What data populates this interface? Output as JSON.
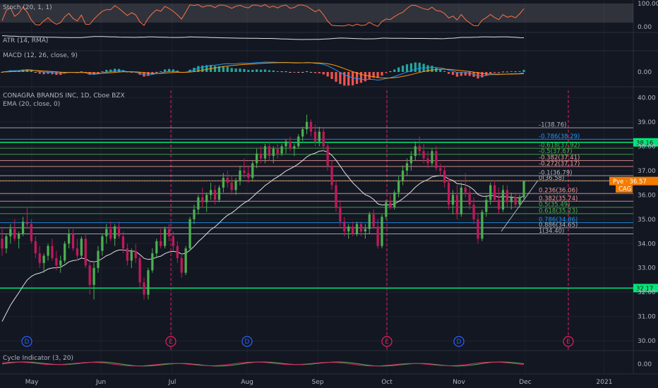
{
  "chart_data": {
    "type": "candlestick",
    "title": "CONAGRA BRANDS INC, 1D, Cboe BZX",
    "ema_label": "EMA (20, close, 0)",
    "indicators": {
      "stoch": {
        "label": "Stoch (20, 1, 1)",
        "ticks": [
          "100.00",
          "0.00"
        ]
      },
      "atr": {
        "label": "ATR (14, RMA)"
      },
      "macd": {
        "label": "MACD (12, 26, close, 9)",
        "ticks": [
          "0.00"
        ]
      },
      "cycle": {
        "label": "Cycle Indicator (3, 20)",
        "ticks": [
          "0.00"
        ]
      }
    },
    "price_axis": {
      "ylim": [
        29.6,
        40.3
      ],
      "ticks": [
        "40.00",
        "39.00",
        "38.00",
        "37.00",
        "36.00",
        "35.00",
        "34.00",
        "33.00",
        "32.00",
        "31.00",
        "30.00"
      ]
    },
    "x_labels": [
      "May",
      "Jun",
      "Jul",
      "Aug",
      "Sep",
      "Oct",
      "Nov",
      "Dec",
      "2021"
    ],
    "fib_levels": [
      {
        "label": "-1(38.76)",
        "price": 38.76,
        "color": "#b2b5be"
      },
      {
        "label": "-0.786(38.29)",
        "price": 38.29,
        "color": "#2196f3"
      },
      {
        "label": "-0.618(37.92)",
        "price": 37.92,
        "color": "#4caf50"
      },
      {
        "label": "-0.5(37.67)",
        "price": 37.67,
        "color": "#4caf50"
      },
      {
        "label": "-0.382(37.41)",
        "price": 37.41,
        "color": "#ef9a9a"
      },
      {
        "label": "-0.272(37.17)",
        "price": 37.17,
        "color": "#ef9a9a"
      },
      {
        "label": "-0.1(36.79)",
        "price": 36.79,
        "color": "#b2b5be"
      },
      {
        "label": "0(36.58)",
        "price": 36.58,
        "color": "#b2b5be"
      },
      {
        "label": "0.236(36.06)",
        "price": 36.06,
        "color": "#ef9a9a"
      },
      {
        "label": "0.382(35.74)",
        "price": 35.74,
        "color": "#ef9a9a"
      },
      {
        "label": "0.5(35.49)",
        "price": 35.49,
        "color": "#4caf50"
      },
      {
        "label": "0.618(35.23)",
        "price": 35.23,
        "color": "#4caf50"
      },
      {
        "label": "0.786(34.86)",
        "price": 34.86,
        "color": "#2196f3"
      },
      {
        "label": "0.886(34.65)",
        "price": 34.65,
        "color": "#b2b5be"
      },
      {
        "label": "1(34.40)",
        "price": 34.4,
        "color": "#b2b5be"
      }
    ],
    "horizontal_lines": [
      {
        "label": "38.16",
        "price": 38.16,
        "color": "#00e676"
      },
      {
        "label": "32.17",
        "price": 32.17,
        "color": "#00e676"
      }
    ],
    "price_tags": [
      {
        "label": "Руе · 36.57",
        "price": 36.57,
        "color": "#f57c00"
      },
      {
        "label": "CAG",
        "price": 36.27,
        "color": "#f57c00"
      }
    ],
    "event_markers": [
      {
        "letter": "D",
        "color": "#2962ff"
      },
      {
        "letter": "E",
        "color": "#e91e63"
      },
      {
        "letter": "D",
        "color": "#2962ff"
      },
      {
        "letter": "E",
        "color": "#e91e63"
      },
      {
        "letter": "D",
        "color": "#2962ff"
      },
      {
        "letter": "E",
        "color": "#e91e63"
      }
    ],
    "candles": [
      {
        "o": 34.2,
        "h": 34.6,
        "l": 33.5,
        "c": 33.8
      },
      {
        "o": 33.8,
        "h": 34.4,
        "l": 33.6,
        "c": 34.3
      },
      {
        "o": 34.3,
        "h": 34.8,
        "l": 34.0,
        "c": 34.6
      },
      {
        "o": 34.6,
        "h": 35.0,
        "l": 34.1,
        "c": 34.2
      },
      {
        "o": 34.2,
        "h": 34.5,
        "l": 33.8,
        "c": 34.4
      },
      {
        "o": 34.4,
        "h": 35.1,
        "l": 34.3,
        "c": 34.9
      },
      {
        "o": 34.9,
        "h": 35.5,
        "l": 34.6,
        "c": 34.8
      },
      {
        "o": 34.8,
        "h": 35.0,
        "l": 34.0,
        "c": 34.1
      },
      {
        "o": 34.1,
        "h": 34.3,
        "l": 33.4,
        "c": 33.6
      },
      {
        "o": 33.6,
        "h": 33.9,
        "l": 33.0,
        "c": 33.2
      },
      {
        "o": 33.2,
        "h": 33.6,
        "l": 32.8,
        "c": 33.5
      },
      {
        "o": 33.5,
        "h": 34.0,
        "l": 33.3,
        "c": 33.9
      },
      {
        "o": 33.9,
        "h": 34.2,
        "l": 33.3,
        "c": 33.4
      },
      {
        "o": 33.4,
        "h": 33.7,
        "l": 32.9,
        "c": 33.1
      },
      {
        "o": 33.1,
        "h": 33.5,
        "l": 32.8,
        "c": 33.3
      },
      {
        "o": 33.3,
        "h": 34.1,
        "l": 33.2,
        "c": 34.0
      },
      {
        "o": 34.0,
        "h": 34.6,
        "l": 33.8,
        "c": 34.4
      },
      {
        "o": 34.4,
        "h": 34.6,
        "l": 33.7,
        "c": 33.8
      },
      {
        "o": 33.8,
        "h": 34.2,
        "l": 33.3,
        "c": 33.5
      },
      {
        "o": 33.5,
        "h": 34.3,
        "l": 33.4,
        "c": 34.2
      },
      {
        "o": 34.2,
        "h": 34.4,
        "l": 33.0,
        "c": 33.1
      },
      {
        "o": 33.1,
        "h": 33.3,
        "l": 31.9,
        "c": 32.3
      },
      {
        "o": 32.3,
        "h": 33.2,
        "l": 31.7,
        "c": 33.0
      },
      {
        "o": 33.0,
        "h": 33.9,
        "l": 32.8,
        "c": 33.7
      },
      {
        "o": 33.7,
        "h": 34.4,
        "l": 33.5,
        "c": 34.3
      },
      {
        "o": 34.3,
        "h": 34.8,
        "l": 34.0,
        "c": 34.6
      },
      {
        "o": 34.6,
        "h": 34.9,
        "l": 34.1,
        "c": 34.2
      },
      {
        "o": 34.2,
        "h": 34.8,
        "l": 33.9,
        "c": 34.7
      },
      {
        "o": 34.7,
        "h": 34.9,
        "l": 34.2,
        "c": 34.3
      },
      {
        "o": 34.3,
        "h": 34.5,
        "l": 33.6,
        "c": 33.8
      },
      {
        "o": 33.8,
        "h": 34.0,
        "l": 33.1,
        "c": 33.3
      },
      {
        "o": 33.3,
        "h": 33.8,
        "l": 33.0,
        "c": 33.7
      },
      {
        "o": 33.7,
        "h": 34.0,
        "l": 33.2,
        "c": 33.4
      },
      {
        "o": 33.4,
        "h": 33.5,
        "l": 32.2,
        "c": 32.4
      },
      {
        "o": 32.4,
        "h": 32.6,
        "l": 31.7,
        "c": 31.9
      },
      {
        "o": 31.9,
        "h": 33.0,
        "l": 31.7,
        "c": 32.9
      },
      {
        "o": 32.9,
        "h": 33.8,
        "l": 32.8,
        "c": 33.6
      },
      {
        "o": 33.6,
        "h": 34.2,
        "l": 33.4,
        "c": 34.1
      },
      {
        "o": 34.1,
        "h": 34.6,
        "l": 33.8,
        "c": 33.9
      },
      {
        "o": 33.9,
        "h": 34.7,
        "l": 33.8,
        "c": 34.6
      },
      {
        "o": 34.6,
        "h": 34.8,
        "l": 34.1,
        "c": 34.3
      },
      {
        "o": 34.3,
        "h": 34.5,
        "l": 33.7,
        "c": 33.9
      },
      {
        "o": 33.9,
        "h": 34.1,
        "l": 33.2,
        "c": 33.4
      },
      {
        "o": 33.4,
        "h": 33.6,
        "l": 32.6,
        "c": 32.8
      },
      {
        "o": 32.8,
        "h": 33.9,
        "l": 32.7,
        "c": 33.8
      },
      {
        "o": 33.8,
        "h": 35.1,
        "l": 33.7,
        "c": 35.0
      },
      {
        "o": 35.0,
        "h": 35.6,
        "l": 34.8,
        "c": 35.4
      },
      {
        "o": 35.4,
        "h": 36.0,
        "l": 35.2,
        "c": 35.9
      },
      {
        "o": 35.9,
        "h": 36.3,
        "l": 35.5,
        "c": 35.7
      },
      {
        "o": 35.7,
        "h": 36.1,
        "l": 35.3,
        "c": 36.0
      },
      {
        "o": 36.0,
        "h": 36.5,
        "l": 35.8,
        "c": 36.2
      },
      {
        "o": 36.2,
        "h": 36.4,
        "l": 35.6,
        "c": 35.8
      },
      {
        "o": 35.8,
        "h": 36.4,
        "l": 35.7,
        "c": 36.3
      },
      {
        "o": 36.3,
        "h": 36.9,
        "l": 36.1,
        "c": 36.7
      },
      {
        "o": 36.7,
        "h": 37.0,
        "l": 36.3,
        "c": 36.5
      },
      {
        "o": 36.5,
        "h": 36.8,
        "l": 36.0,
        "c": 36.2
      },
      {
        "o": 36.2,
        "h": 36.7,
        "l": 36.0,
        "c": 36.6
      },
      {
        "o": 36.6,
        "h": 37.2,
        "l": 36.4,
        "c": 37.0
      },
      {
        "o": 37.0,
        "h": 37.5,
        "l": 36.7,
        "c": 36.9
      },
      {
        "o": 36.9,
        "h": 37.2,
        "l": 36.5,
        "c": 36.7
      },
      {
        "o": 36.7,
        "h": 37.4,
        "l": 36.6,
        "c": 37.3
      },
      {
        "o": 37.3,
        "h": 37.9,
        "l": 37.1,
        "c": 37.7
      },
      {
        "o": 37.7,
        "h": 38.0,
        "l": 37.3,
        "c": 37.5
      },
      {
        "o": 37.5,
        "h": 38.1,
        "l": 37.3,
        "c": 38.0
      },
      {
        "o": 38.0,
        "h": 38.2,
        "l": 37.4,
        "c": 37.6
      },
      {
        "o": 37.6,
        "h": 38.0,
        "l": 37.3,
        "c": 37.9
      },
      {
        "o": 37.9,
        "h": 38.1,
        "l": 37.5,
        "c": 37.7
      },
      {
        "o": 37.7,
        "h": 38.1,
        "l": 37.6,
        "c": 38.0
      },
      {
        "o": 38.0,
        "h": 38.3,
        "l": 37.7,
        "c": 38.2
      },
      {
        "o": 38.2,
        "h": 38.4,
        "l": 37.8,
        "c": 37.9
      },
      {
        "o": 37.9,
        "h": 38.1,
        "l": 37.6,
        "c": 38.0
      },
      {
        "o": 38.0,
        "h": 38.5,
        "l": 37.9,
        "c": 38.4
      },
      {
        "o": 38.4,
        "h": 38.8,
        "l": 38.2,
        "c": 38.7
      },
      {
        "o": 38.7,
        "h": 39.3,
        "l": 38.5,
        "c": 39.0
      },
      {
        "o": 39.0,
        "h": 39.1,
        "l": 38.4,
        "c": 38.6
      },
      {
        "o": 38.6,
        "h": 38.9,
        "l": 38.0,
        "c": 38.2
      },
      {
        "o": 38.2,
        "h": 38.8,
        "l": 38.0,
        "c": 38.6
      },
      {
        "o": 38.6,
        "h": 38.8,
        "l": 37.8,
        "c": 38.0
      },
      {
        "o": 38.0,
        "h": 38.1,
        "l": 37.0,
        "c": 37.2
      },
      {
        "o": 37.2,
        "h": 37.4,
        "l": 36.2,
        "c": 36.4
      },
      {
        "o": 36.4,
        "h": 36.6,
        "l": 35.3,
        "c": 35.5
      },
      {
        "o": 35.5,
        "h": 35.8,
        "l": 34.7,
        "c": 34.9
      },
      {
        "o": 34.9,
        "h": 35.1,
        "l": 34.3,
        "c": 34.5
      },
      {
        "o": 34.5,
        "h": 34.8,
        "l": 34.2,
        "c": 34.7
      },
      {
        "o": 34.7,
        "h": 34.9,
        "l": 34.3,
        "c": 34.4
      },
      {
        "o": 34.4,
        "h": 34.9,
        "l": 34.3,
        "c": 34.8
      },
      {
        "o": 34.8,
        "h": 34.9,
        "l": 34.3,
        "c": 34.5
      },
      {
        "o": 34.5,
        "h": 34.8,
        "l": 34.2,
        "c": 34.6
      },
      {
        "o": 34.6,
        "h": 35.3,
        "l": 34.4,
        "c": 35.2
      },
      {
        "o": 35.2,
        "h": 35.4,
        "l": 34.6,
        "c": 34.7
      },
      {
        "o": 34.7,
        "h": 35.0,
        "l": 33.8,
        "c": 33.9
      },
      {
        "o": 33.9,
        "h": 35.2,
        "l": 33.8,
        "c": 35.1
      },
      {
        "o": 35.1,
        "h": 35.8,
        "l": 35.0,
        "c": 35.7
      },
      {
        "o": 35.7,
        "h": 36.0,
        "l": 35.4,
        "c": 35.5
      },
      {
        "o": 35.5,
        "h": 36.2,
        "l": 35.4,
        "c": 36.1
      },
      {
        "o": 36.1,
        "h": 36.8,
        "l": 35.9,
        "c": 36.6
      },
      {
        "o": 36.6,
        "h": 37.2,
        "l": 36.4,
        "c": 37.0
      },
      {
        "o": 37.0,
        "h": 37.5,
        "l": 36.8,
        "c": 37.3
      },
      {
        "o": 37.3,
        "h": 37.8,
        "l": 37.0,
        "c": 37.6
      },
      {
        "o": 37.6,
        "h": 38.2,
        "l": 37.4,
        "c": 38.0
      },
      {
        "o": 38.0,
        "h": 38.4,
        "l": 37.6,
        "c": 37.8
      },
      {
        "o": 37.8,
        "h": 38.1,
        "l": 37.3,
        "c": 37.5
      },
      {
        "o": 37.5,
        "h": 37.8,
        "l": 37.1,
        "c": 37.3
      },
      {
        "o": 37.3,
        "h": 37.9,
        "l": 37.2,
        "c": 37.8
      },
      {
        "o": 37.8,
        "h": 38.0,
        "l": 37.0,
        "c": 37.1
      },
      {
        "o": 37.1,
        "h": 37.3,
        "l": 36.8,
        "c": 37.0
      },
      {
        "o": 37.0,
        "h": 37.2,
        "l": 36.3,
        "c": 36.5
      },
      {
        "o": 36.5,
        "h": 36.7,
        "l": 35.4,
        "c": 35.6
      },
      {
        "o": 35.6,
        "h": 36.2,
        "l": 35.2,
        "c": 36.0
      },
      {
        "o": 36.0,
        "h": 36.4,
        "l": 35.0,
        "c": 35.2
      },
      {
        "o": 35.2,
        "h": 36.5,
        "l": 35.1,
        "c": 36.3
      },
      {
        "o": 36.3,
        "h": 36.9,
        "l": 35.9,
        "c": 36.1
      },
      {
        "o": 36.1,
        "h": 36.3,
        "l": 35.4,
        "c": 35.6
      },
      {
        "o": 35.6,
        "h": 35.9,
        "l": 34.8,
        "c": 35.0
      },
      {
        "o": 35.0,
        "h": 35.2,
        "l": 34.0,
        "c": 34.2
      },
      {
        "o": 34.2,
        "h": 35.4,
        "l": 34.1,
        "c": 35.3
      },
      {
        "o": 35.3,
        "h": 36.0,
        "l": 35.1,
        "c": 35.8
      },
      {
        "o": 35.8,
        "h": 36.5,
        "l": 35.6,
        "c": 36.4
      },
      {
        "o": 36.4,
        "h": 36.6,
        "l": 35.7,
        "c": 35.8
      },
      {
        "o": 35.8,
        "h": 36.3,
        "l": 35.2,
        "c": 35.4
      },
      {
        "o": 35.4,
        "h": 36.4,
        "l": 35.3,
        "c": 36.2
      },
      {
        "o": 36.2,
        "h": 36.4,
        "l": 35.5,
        "c": 35.7
      },
      {
        "o": 35.7,
        "h": 36.1,
        "l": 35.4,
        "c": 35.9
      },
      {
        "o": 35.9,
        "h": 36.1,
        "l": 35.5,
        "c": 35.6
      },
      {
        "o": 35.6,
        "h": 36.0,
        "l": 35.5,
        "c": 35.9
      },
      {
        "o": 35.9,
        "h": 36.6,
        "l": 35.8,
        "c": 36.57
      }
    ]
  }
}
